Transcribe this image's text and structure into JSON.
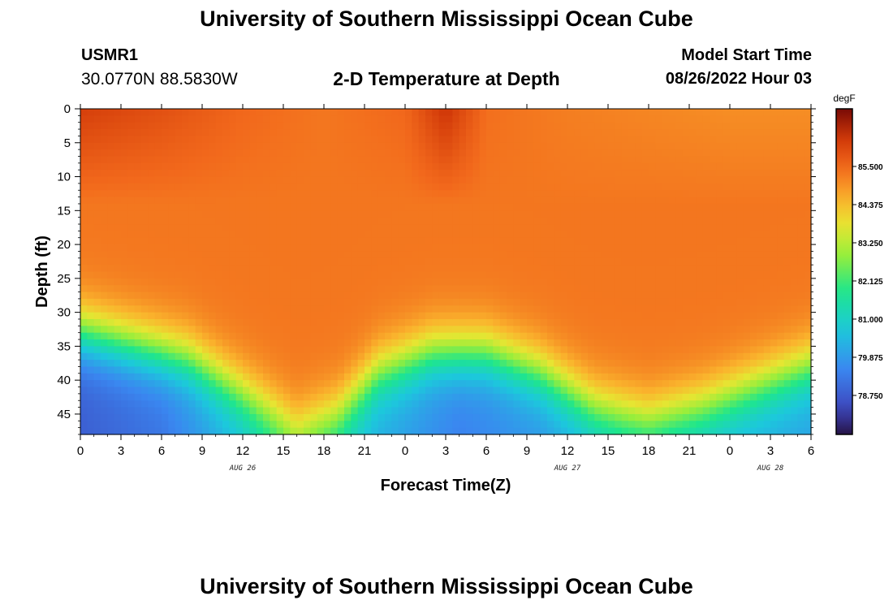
{
  "header": {
    "title": "University of Southern Mississippi Ocean Cube",
    "station_id": "USMR1",
    "station_coords": "30.0770N  88.5830W",
    "plot_title": "2-D Temperature at Depth",
    "model_start_label": "Model Start Time",
    "model_start_time": "08/26/2022 Hour 03"
  },
  "footer": {
    "title": "University of Southern Mississippi Ocean Cube"
  },
  "chart_data": {
    "type": "heatmap",
    "title": "2-D Temperature at Depth",
    "xlabel": "Forecast Time(Z)",
    "ylabel": "Depth (ft)",
    "x_range_hours": [
      0,
      54
    ],
    "x_ticks_hours": [
      0,
      3,
      6,
      9,
      12,
      15,
      18,
      21,
      24,
      27,
      30,
      33,
      36,
      39,
      42,
      45,
      48,
      51,
      54
    ],
    "x_tick_labels": [
      "0",
      "3",
      "6",
      "9",
      "12",
      "15",
      "18",
      "21",
      "0",
      "3",
      "6",
      "9",
      "12",
      "15",
      "18",
      "21",
      "0",
      "3",
      "6"
    ],
    "date_labels": [
      {
        "text": "AUG 26",
        "hour": 12
      },
      {
        "text": "AUG 27",
        "hour": 36
      },
      {
        "text": "AUG 28",
        "hour": 51
      }
    ],
    "y_range_ft": [
      0,
      48
    ],
    "y_ticks": [
      0,
      5,
      10,
      15,
      20,
      25,
      30,
      35,
      40,
      45
    ],
    "y_tick_labels": [
      "0",
      "5",
      "10",
      "15",
      "20",
      "25",
      "30",
      "35",
      "40",
      "45"
    ],
    "colorbar": {
      "unit": "degF",
      "range": [
        77.6,
        87.2
      ],
      "ticks": [
        78.75,
        79.875,
        81.0,
        82.125,
        83.25,
        84.375,
        85.5
      ],
      "tick_labels": [
        "78.750",
        "79.875",
        "81.000",
        "82.125",
        "83.250",
        "84.375",
        "85.500"
      ]
    },
    "grid_resolution": {
      "x_hours_step": 0.5,
      "y_ft_step": 1
    },
    "thermocline_depth_ft": [
      {
        "hour": 0,
        "depth": 33
      },
      {
        "hour": 4,
        "depth": 35
      },
      {
        "hour": 8,
        "depth": 37
      },
      {
        "hour": 12,
        "depth": 42
      },
      {
        "hour": 16,
        "depth": 47
      },
      {
        "hour": 19,
        "depth": 45
      },
      {
        "hour": 22,
        "depth": 39
      },
      {
        "hour": 26,
        "depth": 36
      },
      {
        "hour": 30,
        "depth": 36
      },
      {
        "hour": 34,
        "depth": 39
      },
      {
        "hour": 38,
        "depth": 44
      },
      {
        "hour": 42,
        "depth": 46
      },
      {
        "hour": 46,
        "depth": 44
      },
      {
        "hour": 50,
        "depth": 41
      },
      {
        "hour": 54,
        "depth": 38
      }
    ],
    "surface_temperature_degF": [
      {
        "hour": 0,
        "value": 86.2
      },
      {
        "hour": 6,
        "value": 85.9
      },
      {
        "hour": 12,
        "value": 85.5
      },
      {
        "hour": 18,
        "value": 85.3
      },
      {
        "hour": 24,
        "value": 85.5
      },
      {
        "hour": 27,
        "value": 86.4
      },
      {
        "hour": 30,
        "value": 85.4
      },
      {
        "hour": 36,
        "value": 85.2
      },
      {
        "hour": 42,
        "value": 85.1
      },
      {
        "hour": 48,
        "value": 85.0
      },
      {
        "hour": 54,
        "value": 85.0
      }
    ],
    "bottom_temperature_degF": [
      {
        "hour": 0,
        "value": 78.8
      },
      {
        "hour": 6,
        "value": 79.2
      },
      {
        "hour": 12,
        "value": 80.5
      },
      {
        "hour": 16,
        "value": 81.8
      },
      {
        "hour": 22,
        "value": 80.2
      },
      {
        "hour": 28,
        "value": 79.4
      },
      {
        "hour": 34,
        "value": 79.8
      },
      {
        "hour": 40,
        "value": 80.6
      },
      {
        "hour": 46,
        "value": 80.4
      },
      {
        "hour": 54,
        "value": 80.0
      }
    ]
  }
}
